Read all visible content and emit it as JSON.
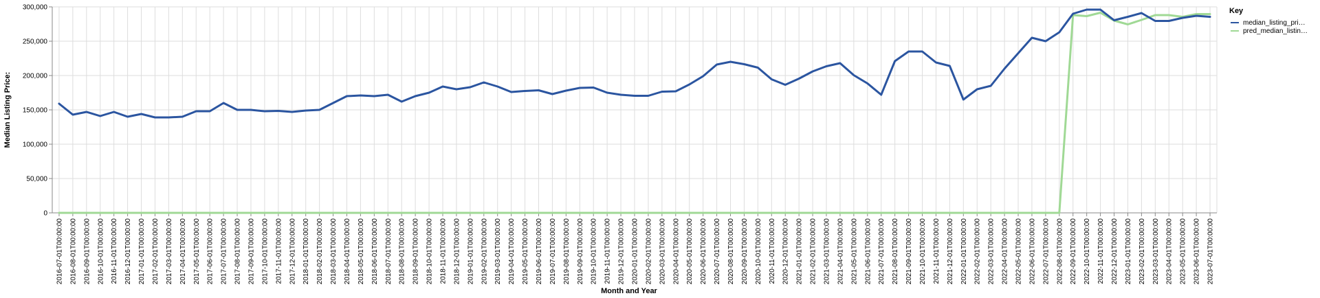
{
  "chart_data": {
    "type": "line",
    "xlabel": "Month and Year",
    "ylabel": "Median Listing Price:",
    "ylim": [
      0,
      300000
    ],
    "yticks": [
      "0",
      "50,000",
      "100,000",
      "150,000",
      "200,000",
      "250,000",
      "300,000"
    ],
    "grid": true,
    "legend": {
      "title": "Key",
      "placement": "right",
      "entries": [
        "median_listing_pri…",
        "pred_median_listin…"
      ]
    },
    "categories": [
      "2016-07-01T00:00:00",
      "2016-08-01T00:00:00",
      "2016-09-01T00:00:00",
      "2016-10-01T00:00:00",
      "2016-11-01T00:00:00",
      "2016-12-01T00:00:00",
      "2017-01-01T00:00:00",
      "2017-02-01T00:00:00",
      "2017-03-01T00:00:00",
      "2017-04-01T00:00:00",
      "2017-05-01T00:00:00",
      "2017-06-01T00:00:00",
      "2017-07-01T00:00:00",
      "2017-08-01T00:00:00",
      "2017-09-01T00:00:00",
      "2017-10-01T00:00:00",
      "2017-11-01T00:00:00",
      "2017-12-01T00:00:00",
      "2018-01-01T00:00:00",
      "2018-02-01T00:00:00",
      "2018-03-01T00:00:00",
      "2018-04-01T00:00:00",
      "2018-05-01T00:00:00",
      "2018-06-01T00:00:00",
      "2018-07-01T00:00:00",
      "2018-08-01T00:00:00",
      "2018-09-01T00:00:00",
      "2018-10-01T00:00:00",
      "2018-11-01T00:00:00",
      "2018-12-01T00:00:00",
      "2019-01-01T00:00:00",
      "2019-02-01T00:00:00",
      "2019-03-01T00:00:00",
      "2019-04-01T00:00:00",
      "2019-05-01T00:00:00",
      "2019-06-01T00:00:00",
      "2019-07-01T00:00:00",
      "2019-08-01T00:00:00",
      "2019-09-01T00:00:00",
      "2019-10-01T00:00:00",
      "2019-11-01T00:00:00",
      "2019-12-01T00:00:00",
      "2020-01-01T00:00:00",
      "2020-02-01T00:00:00",
      "2020-03-01T00:00:00",
      "2020-04-01T00:00:00",
      "2020-05-01T00:00:00",
      "2020-06-01T00:00:00",
      "2020-07-01T00:00:00",
      "2020-08-01T00:00:00",
      "2020-09-01T00:00:00",
      "2020-10-01T00:00:00",
      "2020-11-01T00:00:00",
      "2020-12-01T00:00:00",
      "2021-01-01T00:00:00",
      "2021-02-01T00:00:00",
      "2021-03-01T00:00:00",
      "2021-04-01T00:00:00",
      "2021-05-01T00:00:00",
      "2021-06-01T00:00:00",
      "2021-07-01T00:00:00",
      "2021-08-01T00:00:00",
      "2021-09-01T00:00:00",
      "2021-10-01T00:00:00",
      "2021-11-01T00:00:00",
      "2021-12-01T00:00:00",
      "2022-01-01T00:00:00",
      "2022-02-01T00:00:00",
      "2022-03-01T00:00:00",
      "2022-04-01T00:00:00",
      "2022-05-01T00:00:00",
      "2022-06-01T00:00:00",
      "2022-07-01T00:00:00",
      "2022-08-01T00:00:00",
      "2022-09-01T00:00:00",
      "2022-10-01T00:00:00",
      "2022-11-01T00:00:00",
      "2022-12-01T00:00:00",
      "2023-01-01T00:00:00",
      "2023-02-01T00:00:00",
      "2023-03-01T00:00:00",
      "2023-04-01T00:00:00",
      "2023-05-01T00:00:00",
      "2023-06-01T00:00:00",
      "2023-07-01T00:00:00"
    ],
    "series": [
      {
        "name": "median_listing_pri…",
        "color": "#2b55a0",
        "values": [
          159000,
          143000,
          147000,
          141000,
          147000,
          140000,
          144000,
          139000,
          139000,
          140000,
          148000,
          148000,
          160000,
          150000,
          150000,
          148000,
          148500,
          147000,
          149000,
          150000,
          160000,
          170000,
          171000,
          170000,
          172000,
          162000,
          170000,
          175000,
          184000,
          180000,
          183000,
          190000,
          184000,
          176000,
          177500,
          178500,
          173000,
          178000,
          182000,
          182500,
          175000,
          172000,
          170500,
          170500,
          176500,
          177000,
          187000,
          199000,
          216000,
          220000,
          216500,
          211500,
          194500,
          186500,
          195500,
          206000,
          213500,
          218000,
          200500,
          188500,
          172000,
          221000,
          235000,
          235000,
          219000,
          214000,
          165000,
          180000,
          185000,
          210000,
          232500,
          255000,
          250000,
          263000,
          290000,
          296000,
          296000,
          280500,
          285500,
          291000,
          279500,
          279500,
          284000,
          287000,
          285500
        ]
      },
      {
        "name": "pred_median_listin…",
        "color": "#a0d995",
        "values": [
          0,
          0,
          0,
          0,
          0,
          0,
          0,
          0,
          0,
          0,
          0,
          0,
          0,
          0,
          0,
          0,
          0,
          0,
          0,
          0,
          0,
          0,
          0,
          0,
          0,
          0,
          0,
          0,
          0,
          0,
          0,
          0,
          0,
          0,
          0,
          0,
          0,
          0,
          0,
          0,
          0,
          0,
          0,
          0,
          0,
          0,
          0,
          0,
          0,
          0,
          0,
          0,
          0,
          0,
          0,
          0,
          0,
          0,
          0,
          0,
          0,
          0,
          0,
          0,
          0,
          0,
          0,
          0,
          0,
          0,
          0,
          0,
          0,
          0,
          288000,
          286500,
          291500,
          280000,
          274500,
          281000,
          288000,
          288000,
          285500,
          289500,
          289500
        ]
      }
    ]
  }
}
